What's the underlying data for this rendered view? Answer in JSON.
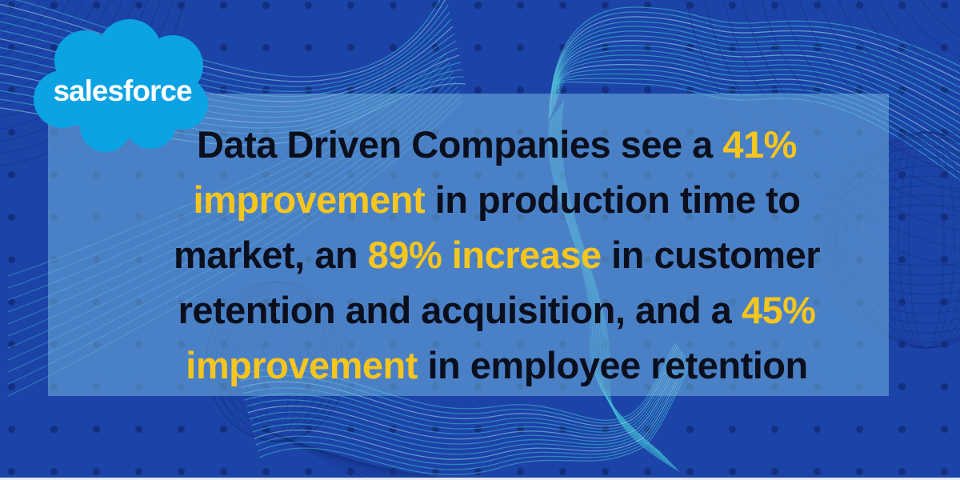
{
  "logo": {
    "wordmark": "salesforce"
  },
  "statement": {
    "full_text": "Data Driven Companies see a 41% improvement in production time to market, an 89% increase in customer retention and acquisition, and a 45% improvement in employee retention",
    "lines": [
      [
        {
          "text": "Data Driven Companies see a ",
          "highlight": false
        },
        {
          "text": "41%",
          "highlight": true
        }
      ],
      [
        {
          "text": "improvement",
          "highlight": true
        },
        {
          "text": " in production time to",
          "highlight": false
        }
      ],
      [
        {
          "text": "market, an ",
          "highlight": false
        },
        {
          "text": "89% increase",
          "highlight": true
        },
        {
          "text": " in customer",
          "highlight": false
        }
      ],
      [
        {
          "text": "retention and acquisition, and a ",
          "highlight": false
        },
        {
          "text": "45%",
          "highlight": true
        }
      ],
      [
        {
          "text": "improvement",
          "highlight": true
        },
        {
          "text": " in employee retention",
          "highlight": false
        }
      ]
    ],
    "text_color": "#0B0F1D",
    "highlight_color": "#F6C51E"
  },
  "colors": {
    "background": "#1C43A8",
    "panel_overlay": "rgba(113,180,222,0.55)",
    "cloud": "#0BA3E3",
    "wordmark": "#FFFFFF",
    "wave_teal": "#45C8DA",
    "wave_teal_bright": "#9FE8EE",
    "wave_navy": "#132E7C",
    "dot": "rgba(10,28,90,0.5)",
    "bottom_strip": "#E4E9F3"
  }
}
